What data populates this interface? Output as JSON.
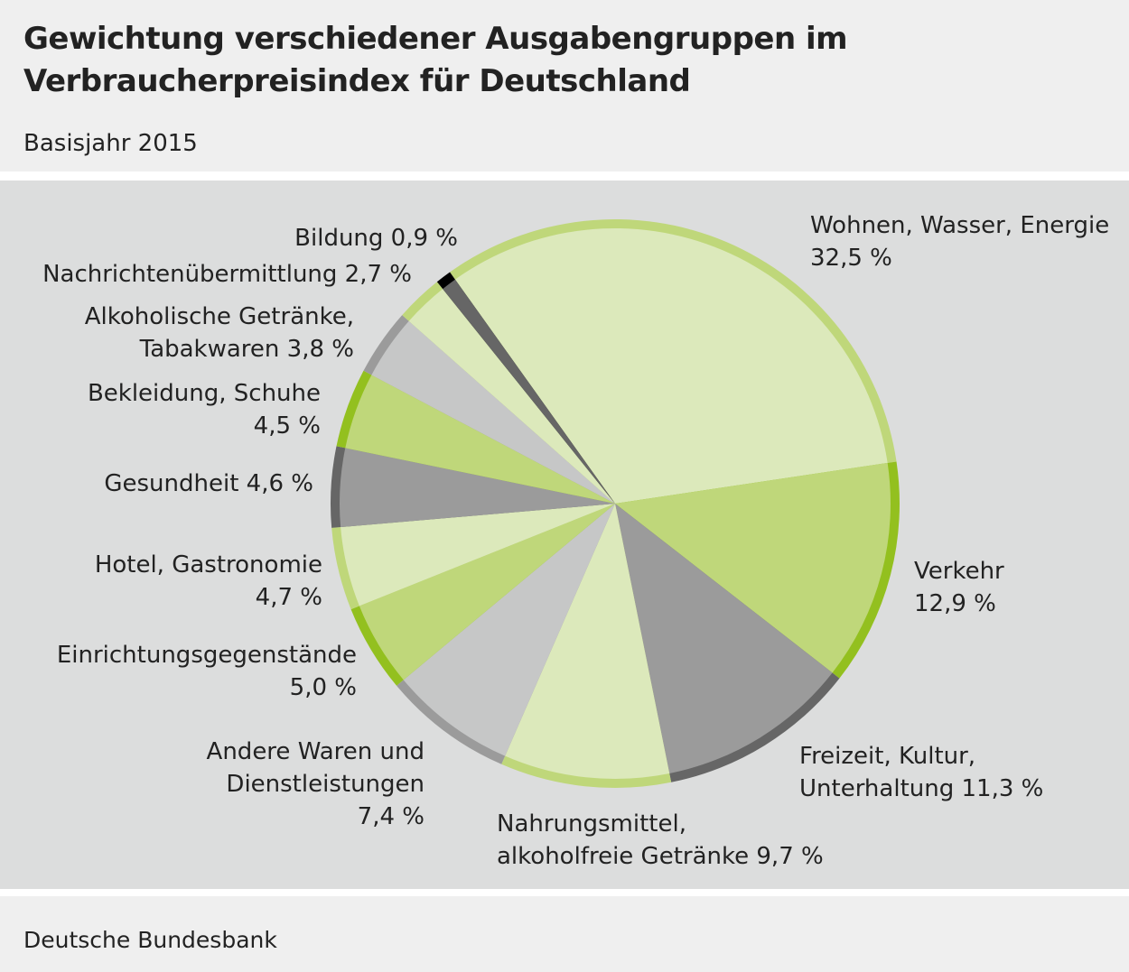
{
  "title": "Gewichtung verschiedener Ausgabengruppen im Verbraucherpreisindex für Deutschland",
  "subtitle": "Basisjahr 2015",
  "source": "Deutsche Bundesbank",
  "chart_data": {
    "type": "pie",
    "title": "Gewichtung verschiedener Ausgabengruppen im Verbraucherpreisindex für Deutschland",
    "subtitle": "Basisjahr 2015",
    "direction": "clockwise",
    "slices": [
      {
        "label": "Wohnen, Wasser, Energie",
        "value": 32.5,
        "text": "Wohnen, Wasser, Energie\n32,5 %",
        "fill": "#dce9bb",
        "rim": "#bfd77a"
      },
      {
        "label": "Verkehr",
        "value": 12.9,
        "text": "Verkehr\n12,9 %",
        "fill": "#bfd77a",
        "rim": "#93c01f"
      },
      {
        "label": "Freizeit, Kultur, Unterhaltung",
        "value": 11.3,
        "text": "Freizeit, Kultur,\nUnterhaltung 11,3 %",
        "fill": "#9b9b9b",
        "rim": "#666666"
      },
      {
        "label": "Nahrungsmittel, alkoholfreie Getränke",
        "value": 9.7,
        "text": "Nahrungsmittel,\nalkoholfreie Getränke 9,7 %",
        "fill": "#dce9bb",
        "rim": "#bfd77a"
      },
      {
        "label": "Andere Waren und Dienstleistungen",
        "value": 7.4,
        "text": "Andere Waren und\nDienstleistungen\n7,4 %",
        "fill": "#c6c7c7",
        "rim": "#9b9b9b"
      },
      {
        "label": "Einrichtungsgegenstände",
        "value": 5.0,
        "text": "Einrichtungsgegenstände\n5,0 %",
        "fill": "#bfd77a",
        "rim": "#93c01f"
      },
      {
        "label": "Hotel, Gastronomie",
        "value": 4.7,
        "text": "Hotel, Gastronomie\n4,7 %",
        "fill": "#dce9bb",
        "rim": "#bfd77a"
      },
      {
        "label": "Gesundheit",
        "value": 4.6,
        "text": "Gesundheit 4,6 %",
        "fill": "#9b9b9b",
        "rim": "#666666"
      },
      {
        "label": "Bekleidung, Schuhe",
        "value": 4.5,
        "text": "Bekleidung, Schuhe\n4,5 %",
        "fill": "#bfd77a",
        "rim": "#93c01f"
      },
      {
        "label": "Alkoholische Getränke, Tabakwaren",
        "value": 3.8,
        "text": "Alkoholische Getränke,\nTabakwaren 3,8 %",
        "fill": "#c6c7c7",
        "rim": "#9b9b9b"
      },
      {
        "label": "Nachrichtenübermittlung",
        "value": 2.7,
        "text": "Nachrichtenübermittlung 2,7 %",
        "fill": "#dce9bb",
        "rim": "#bfd77a"
      },
      {
        "label": "Bildung",
        "value": 0.9,
        "text": "Bildung 0,9 %",
        "fill": "#666666",
        "rim": "#000000"
      }
    ]
  }
}
